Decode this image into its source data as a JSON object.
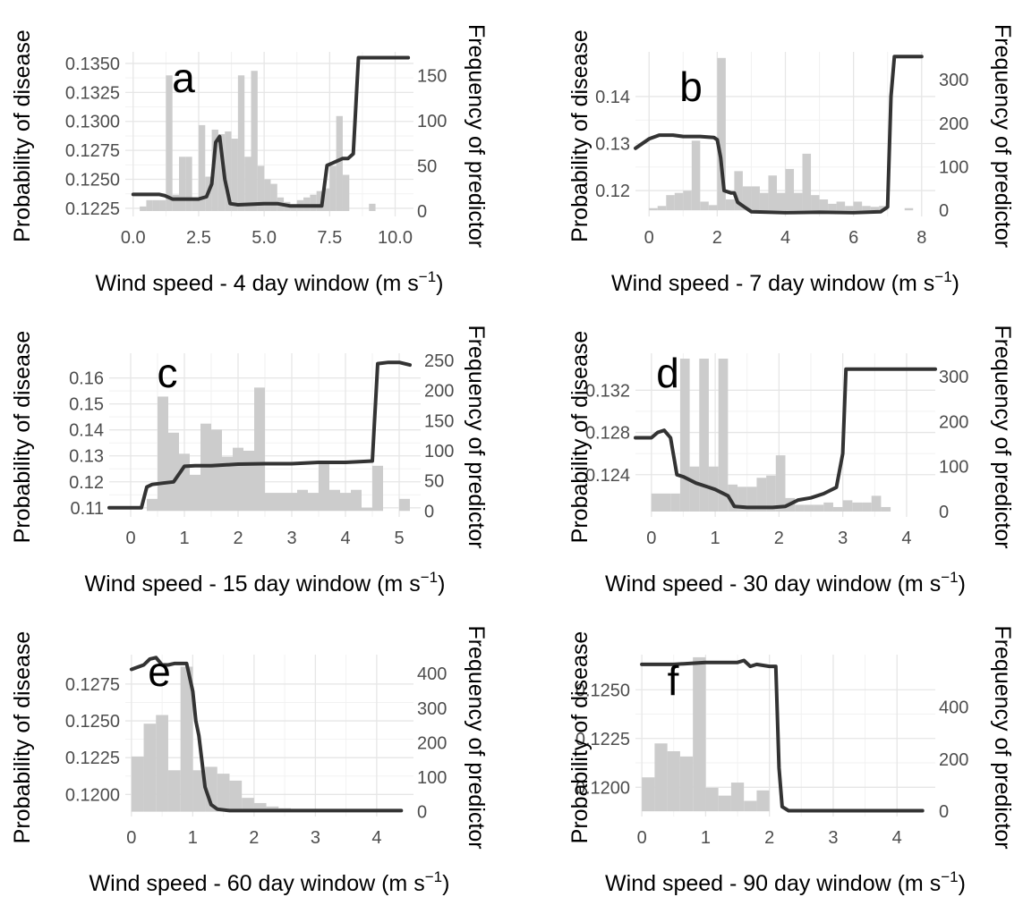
{
  "figure": {
    "colors": {
      "bars": "#cccccc",
      "line": "#333333",
      "grid": "#e6e6e6",
      "ticks": "#4d4d4d"
    }
  },
  "chart_data": [
    {
      "type": "bar+line",
      "panel_label": "a",
      "xlabel_main": "Wind speed - 4 day window (m s",
      "xlabel_sup": "−1",
      "xlabel_close": ")",
      "ylabel_left": "Probability of disease",
      "ylabel_right": "Frequency of predictor",
      "xlim": [
        -0.3,
        10.7
      ],
      "ylim_left": [
        0.1218,
        0.136
      ],
      "ylim_right": [
        -6,
        176
      ],
      "x_ticks": [
        0,
        2.5,
        5,
        7.5,
        10
      ],
      "x_tick_labels": [
        "0.0",
        "2.5",
        "5.0",
        "7.5",
        "10.0"
      ],
      "yl_ticks": [
        0.1225,
        0.125,
        0.1275,
        0.13,
        0.1325,
        0.135
      ],
      "yl_tick_labels": [
        "0.1225",
        "0.1250",
        "0.1275",
        "0.1300",
        "0.1325",
        "0.1350"
      ],
      "yr_ticks": [
        0,
        50,
        100,
        150
      ],
      "yr_tick_labels": [
        "0",
        "50",
        "100",
        "150"
      ],
      "hist": {
        "bin_width": 0.25,
        "starts": [
          0.25,
          0.5,
          0.75,
          1.0,
          1.25,
          1.5,
          1.75,
          2.0,
          2.25,
          2.5,
          2.75,
          3.0,
          3.25,
          3.5,
          3.75,
          4.0,
          4.25,
          4.5,
          4.75,
          5.0,
          5.25,
          5.5,
          5.75,
          6.0,
          6.25,
          6.5,
          6.75,
          7.0,
          7.25,
          7.5,
          7.75,
          8.0,
          9.0
        ],
        "counts": [
          5,
          12,
          12,
          12,
          150,
          18,
          60,
          60,
          12,
          95,
          38,
          90,
          85,
          88,
          80,
          150,
          60,
          155,
          50,
          35,
          30,
          15,
          10,
          5,
          12,
          15,
          18,
          22,
          25,
          50,
          105,
          40,
          8
        ]
      },
      "line": {
        "x": [
          0,
          0.5,
          1.0,
          1.2,
          1.5,
          2.0,
          2.5,
          2.8,
          3.0,
          3.15,
          3.3,
          3.5,
          3.7,
          4.0,
          5.0,
          5.5,
          6.0,
          7.2,
          7.4,
          7.6,
          7.8,
          8.0,
          8.2,
          8.4,
          8.6,
          10.5
        ],
        "y": [
          0.1237,
          0.1237,
          0.1237,
          0.1236,
          0.1233,
          0.1233,
          0.1233,
          0.1235,
          0.1246,
          0.1282,
          0.1287,
          0.125,
          0.1229,
          0.1228,
          0.1229,
          0.1229,
          0.1227,
          0.1227,
          0.1262,
          0.1264,
          0.1266,
          0.1268,
          0.1268,
          0.1272,
          0.1355,
          0.1355
        ]
      }
    },
    {
      "type": "bar+line",
      "panel_label": "b",
      "xlabel_main": "Wind speed - 7 day window (m s",
      "xlabel_sup": "−1",
      "xlabel_close": ")",
      "ylabel_left": "Probability of disease",
      "ylabel_right": "Frequency of predictor",
      "xlim": [
        -0.4,
        8.4
      ],
      "ylim_left": [
        0.1145,
        0.1495
      ],
      "ylim_right": [
        -14,
        364
      ],
      "x_ticks": [
        0,
        2,
        4,
        6,
        8
      ],
      "x_tick_labels": [
        "0",
        "2",
        "4",
        "6",
        "8"
      ],
      "yl_ticks": [
        0.12,
        0.13,
        0.14
      ],
      "yl_tick_labels": [
        "0.12",
        "0.13",
        "0.14"
      ],
      "yr_ticks": [
        0,
        100,
        200,
        300
      ],
      "yr_tick_labels": [
        "0",
        "100",
        "200",
        "300"
      ],
      "hist": {
        "bin_width": 0.25,
        "starts": [
          0.0,
          0.25,
          0.5,
          0.75,
          1.0,
          1.25,
          1.5,
          1.75,
          2.0,
          2.25,
          2.5,
          2.75,
          3.0,
          3.25,
          3.5,
          3.75,
          4.0,
          4.25,
          4.5,
          4.75,
          5.0,
          5.25,
          5.5,
          5.75,
          6.0,
          6.25,
          6.5,
          6.75,
          7.5
        ],
        "counts": [
          5,
          10,
          35,
          40,
          45,
          160,
          20,
          12,
          350,
          25,
          90,
          55,
          55,
          40,
          80,
          40,
          95,
          40,
          130,
          35,
          25,
          15,
          20,
          10,
          20,
          10,
          8,
          10,
          5
        ]
      },
      "line": {
        "x": [
          -0.4,
          0.0,
          0.3,
          0.7,
          1.0,
          1.5,
          1.9,
          2.0,
          2.1,
          2.2,
          2.4,
          2.5,
          2.6,
          2.8,
          3.0,
          4.0,
          5.0,
          6.0,
          6.8,
          7.0,
          7.1,
          7.2,
          8.0
        ],
        "y": [
          0.129,
          0.131,
          0.1318,
          0.1318,
          0.1315,
          0.1315,
          0.1313,
          0.1308,
          0.127,
          0.12,
          0.1195,
          0.1195,
          0.1175,
          0.1165,
          0.1155,
          0.1153,
          0.1154,
          0.1153,
          0.1155,
          0.1165,
          0.14,
          0.1485,
          0.1485
        ]
      }
    },
    {
      "type": "bar+line",
      "panel_label": "c",
      "xlabel_main": "Wind speed - 15 day window (m s",
      "xlabel_sup": "−1",
      "xlabel_close": ")",
      "ylabel_left": "Probability of disease",
      "ylabel_right": "Frequency of predictor",
      "xlim": [
        -0.4,
        5.4
      ],
      "ylim_left": [
        0.1065,
        0.1695
      ],
      "ylim_right": [
        -10,
        262
      ],
      "x_ticks": [
        0,
        1,
        2,
        3,
        4,
        5
      ],
      "x_tick_labels": [
        "0",
        "1",
        "2",
        "3",
        "4",
        "5"
      ],
      "yl_ticks": [
        0.11,
        0.12,
        0.13,
        0.14,
        0.15,
        0.16
      ],
      "yl_tick_labels": [
        "0.11",
        "0.12",
        "0.13",
        "0.14",
        "0.15",
        "0.16"
      ],
      "yr_ticks": [
        0,
        50,
        100,
        150,
        200,
        250
      ],
      "yr_tick_labels": [
        "0",
        "50",
        "100",
        "150",
        "200",
        "250"
      ],
      "hist": {
        "bin_width": 0.2,
        "starts": [
          0.3,
          0.5,
          0.7,
          0.9,
          1.1,
          1.3,
          1.5,
          1.7,
          1.9,
          2.1,
          2.3,
          2.5,
          2.7,
          2.9,
          3.1,
          3.3,
          3.5,
          3.7,
          3.9,
          4.1,
          4.3,
          4.5,
          5.0
        ],
        "counts": [
          20,
          190,
          130,
          95,
          60,
          145,
          135,
          90,
          105,
          100,
          205,
          30,
          30,
          30,
          35,
          30,
          80,
          35,
          30,
          35,
          5,
          75,
          20
        ]
      },
      "line": {
        "x": [
          -0.4,
          0.0,
          0.2,
          0.3,
          0.4,
          0.6,
          0.8,
          1.0,
          1.2,
          1.5,
          2.0,
          2.5,
          3.0,
          3.5,
          4.0,
          4.3,
          4.5,
          4.6,
          4.8,
          5.0,
          5.2
        ],
        "y": [
          0.11,
          0.11,
          0.11,
          0.118,
          0.119,
          0.1195,
          0.12,
          0.126,
          0.1262,
          0.1262,
          0.1268,
          0.127,
          0.127,
          0.1275,
          0.1275,
          0.1278,
          0.128,
          0.1655,
          0.166,
          0.166,
          0.165
        ]
      }
    },
    {
      "type": "bar+line",
      "panel_label": "d",
      "xlabel_main": "Wind speed - 30 day window (m s",
      "xlabel_sup": "−1",
      "xlabel_close": ")",
      "ylabel_left": "Probability of disease",
      "ylabel_right": "Frequency of predictor",
      "xlim": [
        -0.25,
        4.45
      ],
      "ylim_left": [
        0.12,
        0.1355
      ],
      "ylim_right": [
        -12,
        352
      ],
      "x_ticks": [
        0,
        1,
        2,
        3,
        4
      ],
      "x_tick_labels": [
        "0",
        "1",
        "2",
        "3",
        "4"
      ],
      "yl_ticks": [
        0.124,
        0.128,
        0.132
      ],
      "yl_tick_labels": [
        "0.124",
        "0.128",
        "0.132"
      ],
      "yr_ticks": [
        0,
        100,
        200,
        300
      ],
      "yr_tick_labels": [
        "0",
        "100",
        "200",
        "300"
      ],
      "hist": {
        "bin_width": 0.15,
        "starts": [
          0.0,
          0.15,
          0.3,
          0.45,
          0.6,
          0.75,
          0.9,
          1.05,
          1.2,
          1.35,
          1.5,
          1.65,
          1.8,
          1.95,
          2.1,
          2.25,
          2.4,
          2.55,
          2.7,
          2.85,
          3.0,
          3.15,
          3.3,
          3.45,
          3.6
        ],
        "counts": [
          40,
          40,
          40,
          340,
          100,
          340,
          100,
          340,
          60,
          55,
          55,
          75,
          80,
          125,
          30,
          15,
          15,
          15,
          20,
          10,
          25,
          20,
          20,
          35,
          10
        ]
      },
      "line": {
        "x": [
          -0.25,
          0.0,
          0.1,
          0.2,
          0.3,
          0.4,
          0.5,
          0.7,
          0.9,
          1.0,
          1.2,
          1.3,
          1.5,
          1.7,
          1.9,
          2.1,
          2.3,
          2.5,
          2.7,
          2.9,
          3.0,
          3.05,
          3.3,
          4.45
        ],
        "y": [
          0.1275,
          0.1275,
          0.128,
          0.1282,
          0.1275,
          0.124,
          0.1238,
          0.1232,
          0.1228,
          0.1226,
          0.122,
          0.121,
          0.1209,
          0.1209,
          0.1209,
          0.121,
          0.1216,
          0.1218,
          0.1222,
          0.1228,
          0.126,
          0.134,
          0.134,
          0.134
        ]
      }
    },
    {
      "type": "bar+line",
      "panel_label": "e",
      "xlabel_main": "Wind speed - 60 day window (m s",
      "xlabel_sup": "−1",
      "xlabel_close": ")",
      "ylabel_left": "Probability of disease",
      "ylabel_right": "Frequency of predictor",
      "xlim": [
        -0.1,
        4.6
      ],
      "ylim_left": [
        0.1185,
        0.1295
      ],
      "ylim_right": [
        -14,
        455
      ],
      "x_ticks": [
        0,
        1,
        2,
        3,
        4
      ],
      "x_tick_labels": [
        "0",
        "1",
        "2",
        "3",
        "4"
      ],
      "yl_ticks": [
        0.12,
        0.1225,
        0.125,
        0.1275
      ],
      "yl_tick_labels": [
        "0.1200",
        "0.1225",
        "0.1250",
        "0.1275"
      ],
      "yr_ticks": [
        0,
        100,
        200,
        300,
        400
      ],
      "yr_tick_labels": [
        "0",
        "100",
        "200",
        "300",
        "400"
      ],
      "hist": {
        "bin_width": 0.2,
        "starts": [
          0.0,
          0.2,
          0.4,
          0.6,
          0.8,
          1.0,
          1.2,
          1.4,
          1.6,
          1.8,
          2.0,
          2.2,
          2.4,
          3.4,
          3.8
        ],
        "counts": [
          160,
          255,
          280,
          120,
          420,
          120,
          130,
          110,
          90,
          40,
          25,
          15,
          10,
          5,
          5
        ]
      },
      "line": {
        "x": [
          0.0,
          0.2,
          0.3,
          0.4,
          0.5,
          0.6,
          0.7,
          0.8,
          0.9,
          1.0,
          1.05,
          1.1,
          1.2,
          1.3,
          1.4,
          1.6,
          2.0,
          3.0,
          4.4
        ],
        "y": [
          0.1285,
          0.1288,
          0.1292,
          0.1293,
          0.1288,
          0.1288,
          0.1289,
          0.1289,
          0.1289,
          0.127,
          0.125,
          0.124,
          0.1205,
          0.1193,
          0.119,
          0.1189,
          0.1189,
          0.1189,
          0.1189
        ]
      }
    },
    {
      "type": "bar+line",
      "panel_label": "f",
      "xlabel_main": "Wind speed - 90 day window (m s",
      "xlabel_sup": "−1",
      "xlabel_close": ")",
      "ylabel_left": "Probability of disease",
      "ylabel_right": "Frequency of predictor",
      "xlim": [
        -0.1,
        4.6
      ],
      "ylim_left": [
        0.1185,
        0.1268
      ],
      "ylim_right": [
        -20,
        600
      ],
      "x_ticks": [
        0,
        1,
        2,
        3,
        4
      ],
      "x_tick_labels": [
        "0",
        "1",
        "2",
        "3",
        "4"
      ],
      "yl_ticks": [
        0.12,
        0.1225,
        0.125
      ],
      "yl_tick_labels": [
        "0.1200",
        "0.1225",
        "0.1250"
      ],
      "yr_ticks": [
        0,
        200,
        400
      ],
      "yr_tick_labels": [
        "0",
        "200",
        "400"
      ],
      "hist": {
        "bin_width": 0.2,
        "starts": [
          0.0,
          0.2,
          0.4,
          0.6,
          0.8,
          1.0,
          1.2,
          1.4,
          1.6,
          1.8
        ],
        "counts": [
          130,
          260,
          230,
          210,
          590,
          90,
          60,
          110,
          40,
          80
        ]
      },
      "line": {
        "x": [
          0.0,
          0.5,
          1.0,
          1.2,
          1.5,
          1.6,
          1.7,
          1.8,
          2.0,
          2.1,
          2.15,
          2.2,
          2.3,
          2.5,
          3.0,
          4.4
        ],
        "y": [
          0.1263,
          0.1263,
          0.1264,
          0.1264,
          0.1264,
          0.1265,
          0.1262,
          0.1263,
          0.1262,
          0.1262,
          0.121,
          0.119,
          0.1188,
          0.1188,
          0.1188,
          0.1188
        ]
      }
    }
  ]
}
